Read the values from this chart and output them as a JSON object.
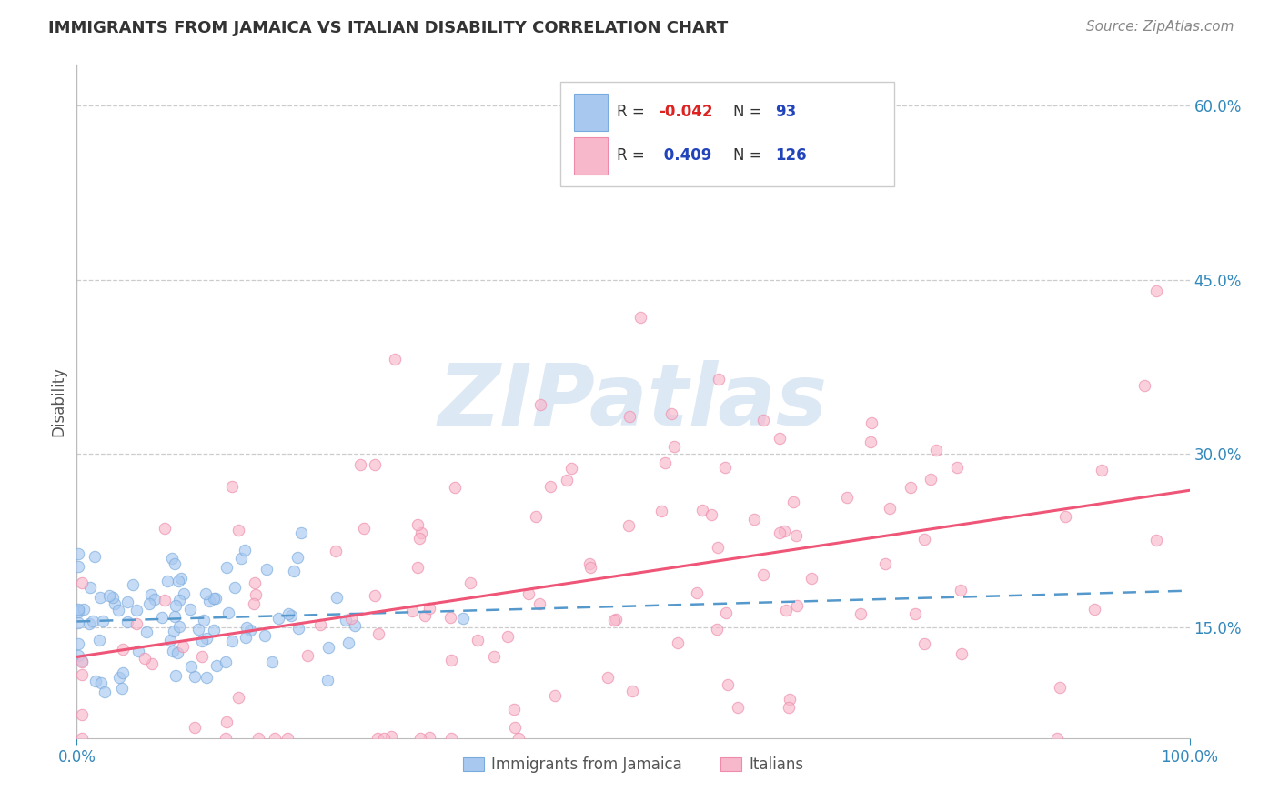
{
  "title": "IMMIGRANTS FROM JAMAICA VS ITALIAN DISABILITY CORRELATION CHART",
  "source": "Source: ZipAtlas.com",
  "ylabel": "Disability",
  "ytick_labels": [
    "15.0%",
    "30.0%",
    "45.0%",
    "60.0%"
  ],
  "ytick_values": [
    0.15,
    0.3,
    0.45,
    0.6
  ],
  "xmin": 0.0,
  "xmax": 1.0,
  "ymin": 0.055,
  "ymax": 0.635,
  "color_blue_fill": "#a8c8f0",
  "color_blue_edge": "#7aabdd",
  "color_pink_fill": "#f8b8cc",
  "color_pink_edge": "#ee8aaa",
  "line_blue_color": "#5599cc",
  "line_pink_color": "#ee5577",
  "background": "#ffffff",
  "grid_color": "#cccccc",
  "title_color": "#333333",
  "source_color": "#888888",
  "axis_label_color": "#555555",
  "tick_color": "#3388bb",
  "legend_text_color": "#2244bb",
  "legend_r_color": "#ee3333",
  "watermark_color": "#dde8f5",
  "seed": 77,
  "n_blue": 93,
  "n_pink": 126,
  "r_blue": -0.042,
  "r_pink": 0.409,
  "dot_size": 80,
  "dot_alpha": 0.65
}
